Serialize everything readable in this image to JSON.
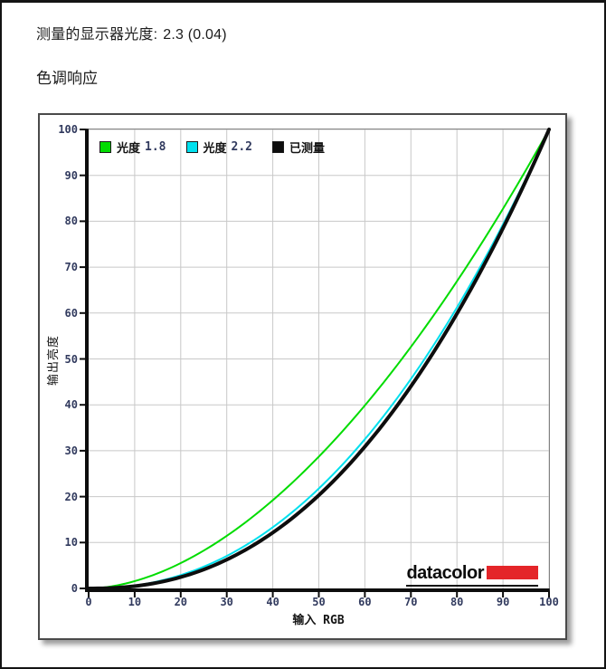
{
  "header": {
    "measured": {
      "label": "测量的显示器光度:",
      "value": "2.3 (0.04)"
    },
    "section_title": "色调响应"
  },
  "chart": {
    "legend": [
      {
        "label": "光度",
        "value": "1.8",
        "color": "#00dc00"
      },
      {
        "label": "光度",
        "value": "2.2",
        "color": "#00e0ee"
      },
      {
        "label": "已测量",
        "value": "",
        "color": "#0d0d0d"
      }
    ],
    "xlabel": "输入 RGB",
    "ylabel": "输出亮度",
    "logo": {
      "text": "datacolor",
      "red_color": "#e42529"
    },
    "colors": {
      "grid": "#c8c8c8",
      "axis": "#0d0d0d",
      "tick_text": "#313a5e",
      "panel_border": "#4a4a4a"
    }
  },
  "chart_data": {
    "type": "line",
    "title": "色调响应",
    "xlabel": "输入 RGB",
    "ylabel": "输出亮度",
    "xlim": [
      0,
      100
    ],
    "ylim": [
      0,
      100
    ],
    "x_ticks": [
      0,
      10,
      20,
      30,
      40,
      50,
      60,
      70,
      80,
      90,
      100
    ],
    "y_ticks": [
      0,
      10,
      20,
      30,
      40,
      50,
      60,
      70,
      80,
      90,
      100
    ],
    "grid": true,
    "legend_position": "top-left-inside",
    "x": [
      0,
      5,
      10,
      15,
      20,
      25,
      30,
      35,
      40,
      45,
      50,
      55,
      60,
      65,
      70,
      75,
      80,
      85,
      90,
      95,
      100
    ],
    "series": [
      {
        "name": "光度 1.8",
        "color": "#00dc00",
        "gamma": 1.8,
        "values": [
          0,
          0.5,
          1.6,
          3.3,
          5.5,
          8.2,
          11.5,
          15.1,
          19.2,
          23.8,
          28.7,
          34.1,
          39.9,
          46.1,
          52.6,
          59.6,
          66.9,
          74.6,
          82.7,
          91.2,
          100
        ]
      },
      {
        "name": "光度 2.2",
        "color": "#00e0ee",
        "gamma": 2.2,
        "values": [
          0,
          0.1,
          0.6,
          1.5,
          2.9,
          4.7,
          7.1,
          9.9,
          13.3,
          17.3,
          21.8,
          26.8,
          32.5,
          38.8,
          45.6,
          53.1,
          61.2,
          69.9,
          79.3,
          89.3,
          100
        ]
      },
      {
        "name": "已测量",
        "color": "#0d0d0d",
        "gamma": 2.3,
        "values": [
          0,
          0.1,
          0.5,
          1.3,
          2.5,
          4.1,
          6.3,
          8.9,
          12.2,
          15.9,
          20.3,
          25.3,
          30.9,
          37.1,
          44.0,
          51.6,
          59.9,
          68.8,
          78.5,
          88.9,
          100
        ]
      }
    ]
  }
}
